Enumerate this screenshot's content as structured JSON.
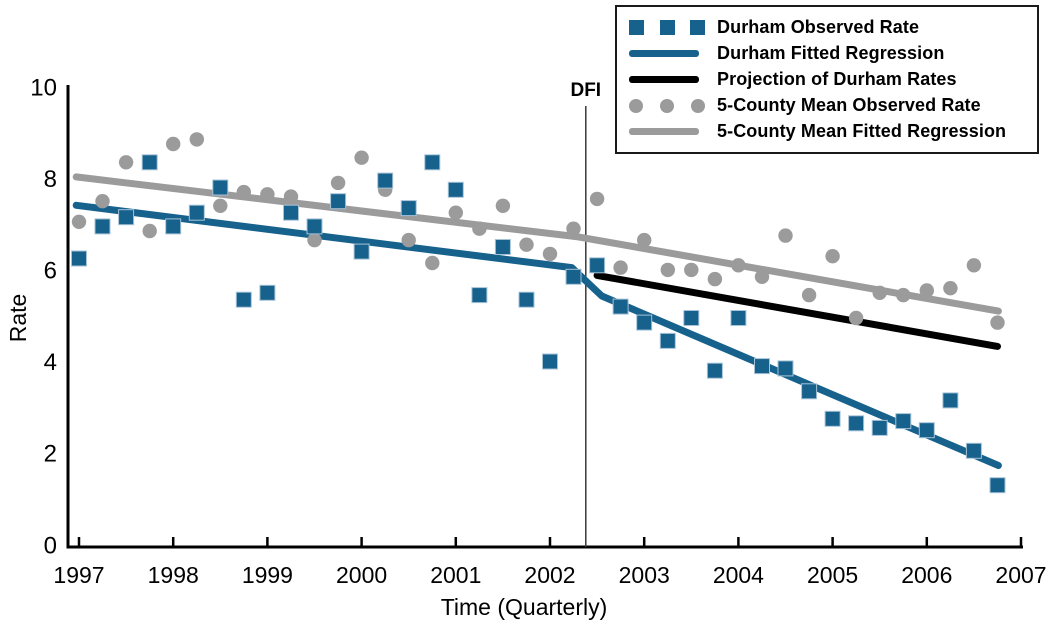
{
  "colors": {
    "durham_blue": "#17618d",
    "durham_blue_edge": "#a6c3d8",
    "county_gray": "#9b9b9b",
    "projection_black": "#000000",
    "axis_black": "#000000",
    "dfi_line": "#3a3a3a",
    "legend_border": "#1a1a1a"
  },
  "legend": {
    "position": "top-right"
  },
  "chart_data": {
    "type": "scatter",
    "title": "",
    "xlabel": "Time (Quarterly)",
    "ylabel": "Rate",
    "xlim": [
      1996.9,
      2007.0
    ],
    "ylim": [
      0,
      10
    ],
    "x_ticks": [
      1997,
      1998,
      1999,
      2000,
      2001,
      2002,
      2003,
      2004,
      2005,
      2006,
      2007
    ],
    "y_ticks": [
      0,
      2,
      4,
      6,
      8,
      10
    ],
    "grid": false,
    "legend_position": "top-right",
    "annotation": {
      "label": "DFI",
      "x": 2002.38
    },
    "x": [
      1997.0,
      1997.25,
      1997.5,
      1997.75,
      1998.0,
      1998.25,
      1998.5,
      1998.75,
      1999.0,
      1999.25,
      1999.5,
      1999.75,
      2000.0,
      2000.25,
      2000.5,
      2000.75,
      2001.0,
      2001.25,
      2001.5,
      2001.75,
      2002.0,
      2002.25,
      2002.5,
      2002.75,
      2003.0,
      2003.25,
      2003.5,
      2003.75,
      2004.0,
      2004.25,
      2004.5,
      2004.75,
      2005.0,
      2005.25,
      2005.5,
      2005.75,
      2006.0,
      2006.25,
      2006.5,
      2006.75
    ],
    "series": [
      {
        "name": "Durham Observed Rate",
        "type": "scatter",
        "marker": "square",
        "color": "#17618d",
        "values": [
          6.3,
          7.0,
          7.2,
          8.4,
          7.0,
          7.3,
          7.85,
          5.4,
          5.55,
          7.3,
          7.0,
          7.55,
          6.45,
          8.0,
          7.4,
          8.4,
          7.8,
          5.5,
          6.55,
          5.4,
          4.05,
          5.9,
          6.15,
          5.25,
          4.9,
          4.5,
          5.0,
          3.85,
          5.0,
          3.95,
          3.9,
          3.4,
          2.8,
          2.7,
          2.6,
          2.75,
          2.55,
          3.2,
          2.1,
          1.35
        ]
      },
      {
        "name": "Durham Fitted Regression",
        "type": "line",
        "color": "#17618d",
        "points": [
          [
            1996.97,
            7.46
          ],
          [
            2002.23,
            6.1
          ],
          [
            2002.55,
            5.48
          ],
          [
            2006.76,
            1.78
          ]
        ]
      },
      {
        "name": "Projection of Durham Rates",
        "type": "line",
        "color": "#000000",
        "points": [
          [
            2002.5,
            5.93
          ],
          [
            2006.75,
            4.38
          ]
        ]
      },
      {
        "name": "5-County Mean Observed Rate",
        "type": "scatter",
        "marker": "circle",
        "color": "#9b9b9b",
        "values": [
          7.1,
          7.55,
          8.4,
          6.9,
          8.8,
          8.9,
          7.45,
          7.75,
          7.7,
          7.65,
          6.7,
          7.95,
          8.5,
          7.8,
          6.7,
          6.2,
          7.3,
          6.95,
          7.45,
          6.6,
          6.4,
          6.95,
          7.6,
          6.1,
          6.7,
          6.05,
          6.05,
          5.85,
          6.15,
          5.9,
          6.8,
          5.5,
          6.35,
          5.0,
          5.55,
          5.5,
          5.6,
          5.65,
          6.15,
          4.9
        ]
      },
      {
        "name": "5-County Mean Fitted Regression",
        "type": "line",
        "color": "#9b9b9b",
        "points": [
          [
            1996.97,
            8.08
          ],
          [
            2002.3,
            6.77
          ],
          [
            2006.76,
            5.15
          ]
        ]
      }
    ]
  }
}
